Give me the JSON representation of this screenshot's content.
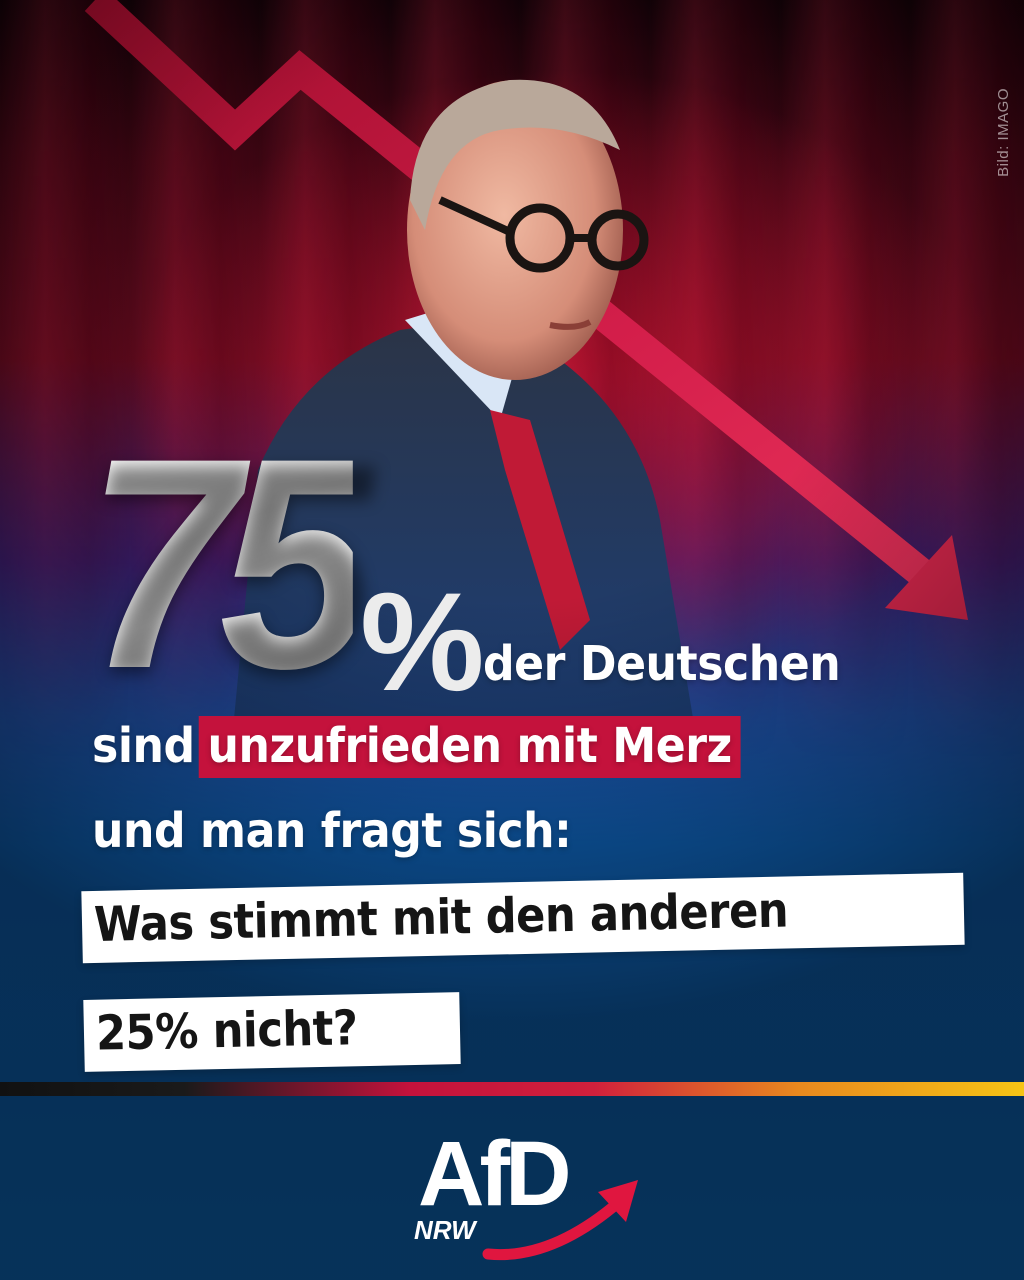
{
  "photo_credit": "Bild: IMAGO",
  "headline": {
    "big_number": "75",
    "percent_sign": "%",
    "line1": "der Deutschen",
    "line2_prefix": "sind",
    "line2_highlight": "unzufrieden mit Merz",
    "line3": "und man fragt sich:"
  },
  "question": {
    "line1": "Was stimmt mit den anderen",
    "line2": "25% nicht?"
  },
  "logo": {
    "name": "AfD",
    "region": "NRW"
  },
  "colors": {
    "background_blue": "#0e6fc6",
    "highlight_red": "#c4123c",
    "arrow_red": "#d31e4a",
    "stripe": [
      "#111111",
      "#c4123c",
      "#f6c415"
    ]
  },
  "icons": [
    "down-trend-arrow",
    "afd-swoosh-arrow"
  ]
}
